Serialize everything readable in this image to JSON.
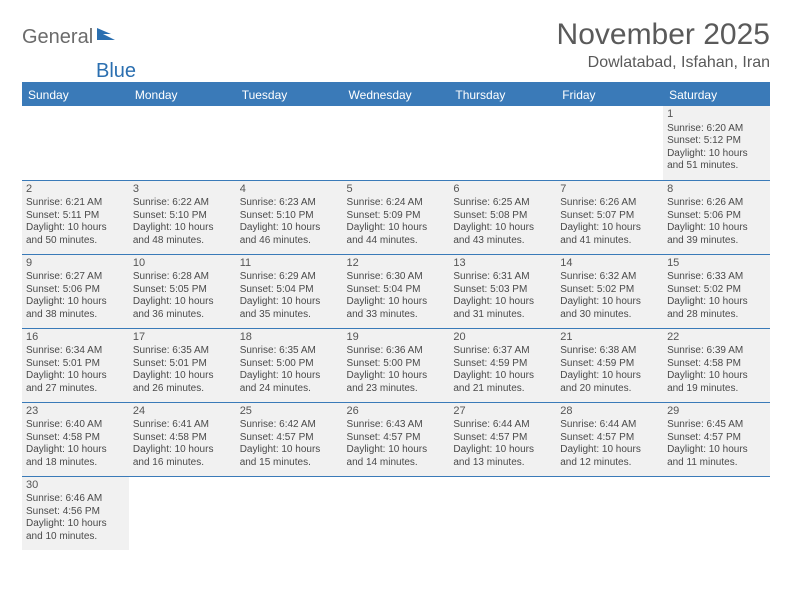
{
  "logo": {
    "part1": "General",
    "part2": "Blue"
  },
  "title": "November 2025",
  "location": "Dowlatabad, Isfahan, Iran",
  "colors": {
    "header_bg": "#3a7ab8",
    "header_text": "#ffffff",
    "cell_bg": "#f1f1f1",
    "border": "#3a7ab8",
    "title_color": "#5a5a5a",
    "logo_gray": "#6b6b6b",
    "logo_blue": "#2b6fb0",
    "text": "#4a4a4a"
  },
  "day_headers": [
    "Sunday",
    "Monday",
    "Tuesday",
    "Wednesday",
    "Thursday",
    "Friday",
    "Saturday"
  ],
  "weeks": [
    [
      null,
      null,
      null,
      null,
      null,
      null,
      {
        "n": "1",
        "sr": "Sunrise: 6:20 AM",
        "ss": "Sunset: 5:12 PM",
        "d1": "Daylight: 10 hours",
        "d2": "and 51 minutes."
      }
    ],
    [
      {
        "n": "2",
        "sr": "Sunrise: 6:21 AM",
        "ss": "Sunset: 5:11 PM",
        "d1": "Daylight: 10 hours",
        "d2": "and 50 minutes."
      },
      {
        "n": "3",
        "sr": "Sunrise: 6:22 AM",
        "ss": "Sunset: 5:10 PM",
        "d1": "Daylight: 10 hours",
        "d2": "and 48 minutes."
      },
      {
        "n": "4",
        "sr": "Sunrise: 6:23 AM",
        "ss": "Sunset: 5:10 PM",
        "d1": "Daylight: 10 hours",
        "d2": "and 46 minutes."
      },
      {
        "n": "5",
        "sr": "Sunrise: 6:24 AM",
        "ss": "Sunset: 5:09 PM",
        "d1": "Daylight: 10 hours",
        "d2": "and 44 minutes."
      },
      {
        "n": "6",
        "sr": "Sunrise: 6:25 AM",
        "ss": "Sunset: 5:08 PM",
        "d1": "Daylight: 10 hours",
        "d2": "and 43 minutes."
      },
      {
        "n": "7",
        "sr": "Sunrise: 6:26 AM",
        "ss": "Sunset: 5:07 PM",
        "d1": "Daylight: 10 hours",
        "d2": "and 41 minutes."
      },
      {
        "n": "8",
        "sr": "Sunrise: 6:26 AM",
        "ss": "Sunset: 5:06 PM",
        "d1": "Daylight: 10 hours",
        "d2": "and 39 minutes."
      }
    ],
    [
      {
        "n": "9",
        "sr": "Sunrise: 6:27 AM",
        "ss": "Sunset: 5:06 PM",
        "d1": "Daylight: 10 hours",
        "d2": "and 38 minutes."
      },
      {
        "n": "10",
        "sr": "Sunrise: 6:28 AM",
        "ss": "Sunset: 5:05 PM",
        "d1": "Daylight: 10 hours",
        "d2": "and 36 minutes."
      },
      {
        "n": "11",
        "sr": "Sunrise: 6:29 AM",
        "ss": "Sunset: 5:04 PM",
        "d1": "Daylight: 10 hours",
        "d2": "and 35 minutes."
      },
      {
        "n": "12",
        "sr": "Sunrise: 6:30 AM",
        "ss": "Sunset: 5:04 PM",
        "d1": "Daylight: 10 hours",
        "d2": "and 33 minutes."
      },
      {
        "n": "13",
        "sr": "Sunrise: 6:31 AM",
        "ss": "Sunset: 5:03 PM",
        "d1": "Daylight: 10 hours",
        "d2": "and 31 minutes."
      },
      {
        "n": "14",
        "sr": "Sunrise: 6:32 AM",
        "ss": "Sunset: 5:02 PM",
        "d1": "Daylight: 10 hours",
        "d2": "and 30 minutes."
      },
      {
        "n": "15",
        "sr": "Sunrise: 6:33 AM",
        "ss": "Sunset: 5:02 PM",
        "d1": "Daylight: 10 hours",
        "d2": "and 28 minutes."
      }
    ],
    [
      {
        "n": "16",
        "sr": "Sunrise: 6:34 AM",
        "ss": "Sunset: 5:01 PM",
        "d1": "Daylight: 10 hours",
        "d2": "and 27 minutes."
      },
      {
        "n": "17",
        "sr": "Sunrise: 6:35 AM",
        "ss": "Sunset: 5:01 PM",
        "d1": "Daylight: 10 hours",
        "d2": "and 26 minutes."
      },
      {
        "n": "18",
        "sr": "Sunrise: 6:35 AM",
        "ss": "Sunset: 5:00 PM",
        "d1": "Daylight: 10 hours",
        "d2": "and 24 minutes."
      },
      {
        "n": "19",
        "sr": "Sunrise: 6:36 AM",
        "ss": "Sunset: 5:00 PM",
        "d1": "Daylight: 10 hours",
        "d2": "and 23 minutes."
      },
      {
        "n": "20",
        "sr": "Sunrise: 6:37 AM",
        "ss": "Sunset: 4:59 PM",
        "d1": "Daylight: 10 hours",
        "d2": "and 21 minutes."
      },
      {
        "n": "21",
        "sr": "Sunrise: 6:38 AM",
        "ss": "Sunset: 4:59 PM",
        "d1": "Daylight: 10 hours",
        "d2": "and 20 minutes."
      },
      {
        "n": "22",
        "sr": "Sunrise: 6:39 AM",
        "ss": "Sunset: 4:58 PM",
        "d1": "Daylight: 10 hours",
        "d2": "and 19 minutes."
      }
    ],
    [
      {
        "n": "23",
        "sr": "Sunrise: 6:40 AM",
        "ss": "Sunset: 4:58 PM",
        "d1": "Daylight: 10 hours",
        "d2": "and 18 minutes."
      },
      {
        "n": "24",
        "sr": "Sunrise: 6:41 AM",
        "ss": "Sunset: 4:58 PM",
        "d1": "Daylight: 10 hours",
        "d2": "and 16 minutes."
      },
      {
        "n": "25",
        "sr": "Sunrise: 6:42 AM",
        "ss": "Sunset: 4:57 PM",
        "d1": "Daylight: 10 hours",
        "d2": "and 15 minutes."
      },
      {
        "n": "26",
        "sr": "Sunrise: 6:43 AM",
        "ss": "Sunset: 4:57 PM",
        "d1": "Daylight: 10 hours",
        "d2": "and 14 minutes."
      },
      {
        "n": "27",
        "sr": "Sunrise: 6:44 AM",
        "ss": "Sunset: 4:57 PM",
        "d1": "Daylight: 10 hours",
        "d2": "and 13 minutes."
      },
      {
        "n": "28",
        "sr": "Sunrise: 6:44 AM",
        "ss": "Sunset: 4:57 PM",
        "d1": "Daylight: 10 hours",
        "d2": "and 12 minutes."
      },
      {
        "n": "29",
        "sr": "Sunrise: 6:45 AM",
        "ss": "Sunset: 4:57 PM",
        "d1": "Daylight: 10 hours",
        "d2": "and 11 minutes."
      }
    ],
    [
      {
        "n": "30",
        "sr": "Sunrise: 6:46 AM",
        "ss": "Sunset: 4:56 PM",
        "d1": "Daylight: 10 hours",
        "d2": "and 10 minutes."
      },
      null,
      null,
      null,
      null,
      null,
      null
    ]
  ]
}
